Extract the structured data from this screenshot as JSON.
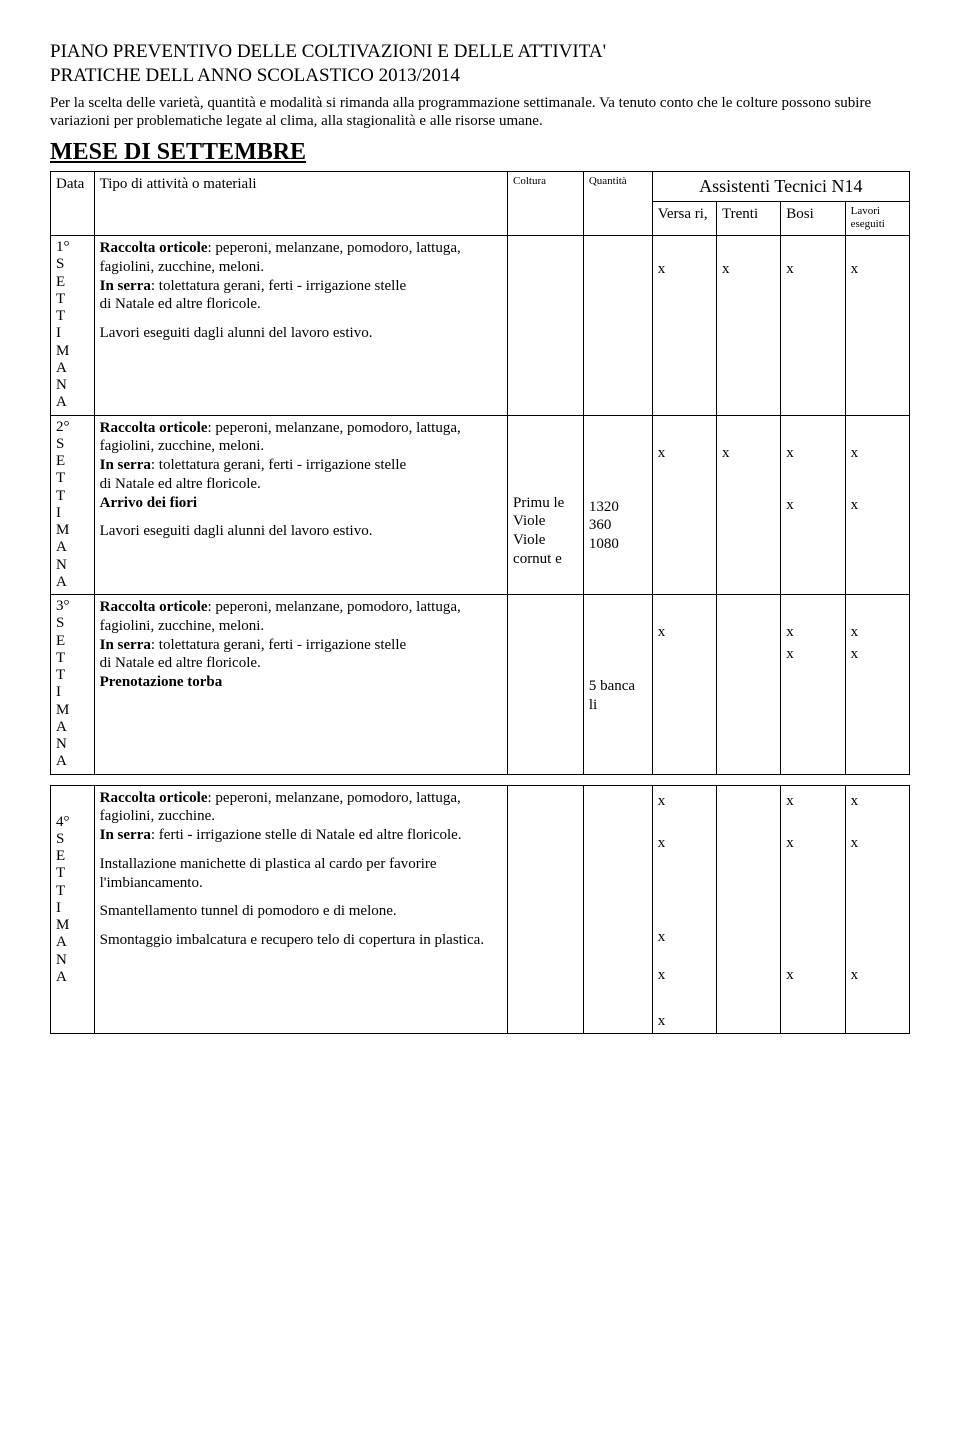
{
  "title": {
    "line1": "PIANO PREVENTIVO  DELLE COLTIVAZIONI E DELLE ATTIVITA'",
    "line2": "PRATICHE  DELL ANNO SCOLASTICO  2013/2014"
  },
  "intro": "Per la scelta delle varietà, quantità e modalità si rimanda alla programmazione settimanale. Va tenuto conto che le colture possono subire variazioni per problematiche legate al clima, alla stagionalità e alle risorse umane.",
  "month_heading": "MESE DI SETTEMBRE",
  "headers": {
    "data": "Data",
    "tipo": "Tipo di attività o materiali",
    "coltura": "Coltura",
    "quantita": "Quantità",
    "assistenti": "Assistenti Tecnici N14",
    "col1": "Versa ri,",
    "col2": "Trenti",
    "col3": "Bosi",
    "col4": "Lavori eseguiti"
  },
  "week_labels": {
    "w1": "1°\nS\nE\nT\nT\nI\nM\nA\nN\nA",
    "w2": "2°\nS\nE\nT\nT\nI\nM\nA\nN\nA",
    "w3": "3°\nS\nE\nT\nT\nI\nM\nA\nN\nA",
    "w4": "4°\nS\nE\nT\nT\nI\nM\nA\nN\nA"
  },
  "rows": {
    "w1": {
      "body_b1": "Raccolta orticole",
      "body_t1": ": peperoni, melanzane, pomodoro, lattuga, fagiolini, zucchine, meloni.",
      "body_b2": "In serra",
      "body_t2": ": tolettatura gerani, ferti - irrigazione stelle",
      "body_t3": "di Natale ed altre floricole.",
      "body_t4": "Lavori eseguiti dagli alunni del lavoro estivo.",
      "x1": "x",
      "x2": "x",
      "x3": "x",
      "x4": "x"
    },
    "w2": {
      "body_b1": "Raccolta orticole",
      "body_t1": ": peperoni, melanzane, pomodoro, lattuga, fagiolini, zucchine, meloni.",
      "body_b2": "In serra",
      "body_t2": ": tolettatura gerani, ferti - irrigazione stelle",
      "body_t3": "di Natale ed altre floricole.",
      "body_b3": "Arrivo  dei fiori",
      "body_t4": "Lavori eseguiti dagli alunni del lavoro estivo.",
      "coltura": "Primu le Viole Viole cornut e",
      "qty1": "1320",
      "qty2": "360",
      "qty3": "1080",
      "a_x1": "x",
      "a_x2": "x",
      "a_x3": "x",
      "a_x4": "x",
      "b_x3": "x",
      "b_x4": "x"
    },
    "w3": {
      "body_b1": "Raccolta orticole",
      "body_t1": ": peperoni, melanzane, pomodoro, lattuga, fagiolini, zucchine, meloni.",
      "body_b2": "In serra",
      "body_t2": ": tolettatura gerani, ferti - irrigazione stelle",
      "body_t3": "di Natale ed altre floricole.",
      "body_b3": "Prenotazione torba",
      "qty": "5 banca li",
      "a_x1": "x",
      "a_x3": "x",
      "a_x4": "x",
      "b_x3": "x",
      "b_x4": "x"
    },
    "w4": {
      "body_b1": "Raccolta orticole",
      "body_t1": ": peperoni, melanzane, pomodoro, lattuga, fagiolini, zucchine.",
      "body_b2": "In serra",
      "body_t2": ":  ferti - irrigazione stelle di Natale ed altre floricole.",
      "body_t3": "Installazione manichette di plastica al cardo per favorire l'imbiancamento.",
      "body_t4": "Smantellamento tunnel di pomodoro e di melone.",
      "body_t5": "Smontaggio imbalcatura e recupero telo di copertura in  plastica.",
      "c1": [
        "x",
        "x",
        "",
        "x",
        "x",
        "x"
      ],
      "c3": [
        "x",
        "x",
        "",
        "",
        "x",
        ""
      ],
      "c4": [
        "x",
        "x",
        "",
        "",
        "x",
        ""
      ]
    }
  }
}
